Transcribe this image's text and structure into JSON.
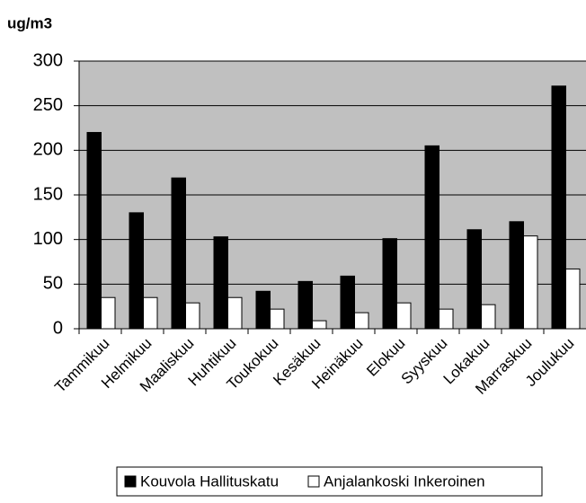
{
  "chart_data": {
    "type": "bar",
    "title": "ug/m3",
    "categories": [
      "Tammikuu",
      "Helmikuu",
      "Maaliskuu",
      "Huhtikuu",
      "Toukokuu",
      "Kesäkuu",
      "Heinäkuu",
      "Elokuu",
      "Syyskuu",
      "Lokakuu",
      "Marraskuu",
      "Joulukuu"
    ],
    "series": [
      {
        "name": "Kouvola Hallituskatu",
        "color": "#000000",
        "values": [
          220,
          130,
          169,
          103,
          42,
          53,
          59,
          101,
          205,
          111,
          120,
          272
        ]
      },
      {
        "name": "Anjalankoski Inkeroinen",
        "color": "#ffffff",
        "values": [
          35,
          35,
          29,
          35,
          22,
          9,
          18,
          29,
          22,
          27,
          104,
          67
        ]
      }
    ],
    "ylim": [
      0,
      300
    ],
    "yticks": [
      0,
      50,
      100,
      150,
      200,
      250,
      300
    ],
    "grid": true,
    "legend": "bottom"
  }
}
